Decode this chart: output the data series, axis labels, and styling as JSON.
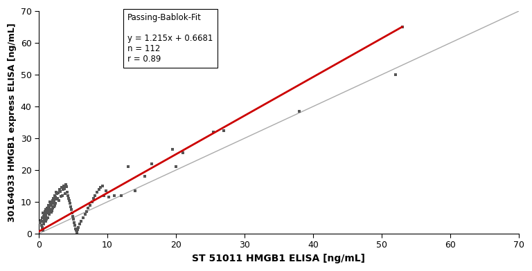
{
  "title": "",
  "xlabel": "ST 51011 HMGB1 ELISA [ng/mL]",
  "ylabel": "30164033 HMGB1 express ELISA [ng/mL]",
  "xlim": [
    0,
    70
  ],
  "ylim": [
    0,
    70
  ],
  "xticks": [
    0,
    10,
    20,
    30,
    40,
    50,
    60,
    70
  ],
  "yticks": [
    0,
    10,
    20,
    30,
    40,
    50,
    60,
    70
  ],
  "fit_slope": 1.215,
  "fit_intercept": 0.6681,
  "fit_n": 112,
  "fit_r": 0.89,
  "fit_x_end": 53.0,
  "identity_color": "#aaaaaa",
  "fit_color": "#cc0000",
  "scatter_color": "#555555",
  "marker_size": 3.5,
  "background_color": "#ffffff",
  "legend_title": "Passing-Bablok-Fit",
  "scatter_x": [
    0.2,
    0.3,
    0.4,
    0.5,
    0.5,
    0.6,
    0.6,
    0.7,
    0.7,
    0.8,
    0.8,
    0.9,
    0.9,
    1.0,
    1.0,
    1.0,
    1.1,
    1.1,
    1.2,
    1.2,
    1.3,
    1.3,
    1.4,
    1.4,
    1.5,
    1.5,
    1.6,
    1.6,
    1.7,
    1.7,
    1.8,
    1.8,
    1.9,
    1.9,
    2.0,
    2.0,
    2.1,
    2.1,
    2.2,
    2.2,
    2.3,
    2.3,
    2.4,
    2.4,
    2.5,
    2.5,
    2.6,
    2.7,
    2.8,
    2.9,
    3.0,
    3.0,
    3.1,
    3.2,
    3.3,
    3.4,
    3.5,
    3.6,
    3.7,
    3.8,
    3.9,
    4.0,
    4.1,
    4.2,
    4.3,
    4.4,
    4.5,
    4.6,
    4.7,
    4.8,
    4.9,
    5.0,
    5.1,
    5.2,
    5.3,
    5.4,
    5.5,
    5.6,
    5.8,
    6.0,
    6.2,
    6.5,
    6.8,
    7.0,
    7.2,
    7.5,
    7.8,
    8.0,
    8.2,
    8.5,
    8.8,
    9.0,
    9.3,
    9.5,
    9.8,
    10.2,
    11.0,
    12.0,
    13.0,
    14.0,
    15.5,
    16.5,
    19.5,
    20.0,
    21.0,
    25.5,
    27.0,
    38.0,
    52.0,
    53.0,
    0.4,
    0.6
  ],
  "scatter_y": [
    3.5,
    4.2,
    3.8,
    5.0,
    2.0,
    4.0,
    6.5,
    5.5,
    3.0,
    6.0,
    4.5,
    7.0,
    5.2,
    5.8,
    4.0,
    7.5,
    6.8,
    4.5,
    7.2,
    8.0,
    6.5,
    5.0,
    7.8,
    9.0,
    8.5,
    6.0,
    7.0,
    10.0,
    9.2,
    7.5,
    8.8,
    6.8,
    9.5,
    7.2,
    10.5,
    8.0,
    9.8,
    11.0,
    10.2,
    8.5,
    9.0,
    12.0,
    11.5,
    9.5,
    10.8,
    13.0,
    12.5,
    11.0,
    12.8,
    10.5,
    13.5,
    14.0,
    13.2,
    11.8,
    14.5,
    12.0,
    13.8,
    15.0,
    14.2,
    12.5,
    15.5,
    14.8,
    13.0,
    12.0,
    11.0,
    10.5,
    9.5,
    8.5,
    7.5,
    6.5,
    5.5,
    4.5,
    3.5,
    2.5,
    1.5,
    1.0,
    0.5,
    1.2,
    2.0,
    3.0,
    4.0,
    5.0,
    6.0,
    7.0,
    8.0,
    9.0,
    10.0,
    11.0,
    12.0,
    13.0,
    14.0,
    14.5,
    15.0,
    12.0,
    13.5,
    11.5,
    12.0,
    12.0,
    21.0,
    13.5,
    18.0,
    22.0,
    26.5,
    21.0,
    25.5,
    32.0,
    32.5,
    38.5,
    50.0,
    65.0,
    2.5,
    1.0
  ]
}
